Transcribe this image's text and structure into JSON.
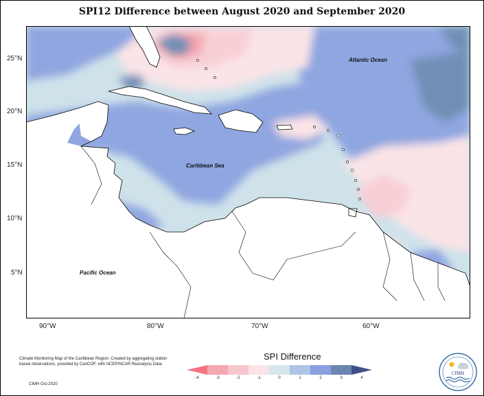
{
  "title": "SPI12 Difference between August 2020 and September 2020",
  "map": {
    "labels": {
      "atlantic": "Atlantic Ocean",
      "caribbean": "Caribbean Sea",
      "pacific": "Pacific Ocean"
    },
    "lon_ticks": [
      "90°W",
      "80°W",
      "70°W",
      "60°W"
    ],
    "lat_ticks": [
      "25°N",
      "20°N",
      "15°N",
      "10°N",
      "5°N"
    ],
    "colors": {
      "strong_dry": "#f58c95",
      "dry": "#f5b4bb",
      "slight_dry": "#f8d3d8",
      "near_zero_dry": "#fbe6e9",
      "near_zero_wet": "#cfe2ea",
      "slight_wet": "#a9c9e4",
      "wet": "#8fa6e0",
      "very_wet": "#6f8fb6",
      "extreme_wet": "#4f6896",
      "land": "#ffffff"
    }
  },
  "footer": {
    "description": "Climate Monitoring Map of the Caribbean Region. Created by aggregating station based observations, provided by CariCOF, with NCEP/NCAR Reanalysis Data.",
    "credit": "CIMH Oct-2020"
  },
  "legend": {
    "title": "SPI Difference",
    "ticks": [
      "-4",
      "-3",
      "-2",
      "-1",
      "0",
      "1",
      "2",
      "3",
      "4"
    ],
    "colors": [
      "#f4737f",
      "#f5a8b0",
      "#f6c8ce",
      "#fbe4e7",
      "#d5e6ec",
      "#aec6e6",
      "#8b9ee0",
      "#6b86b0",
      "#3f4f88"
    ]
  },
  "logo": {
    "name": "CIMH"
  }
}
